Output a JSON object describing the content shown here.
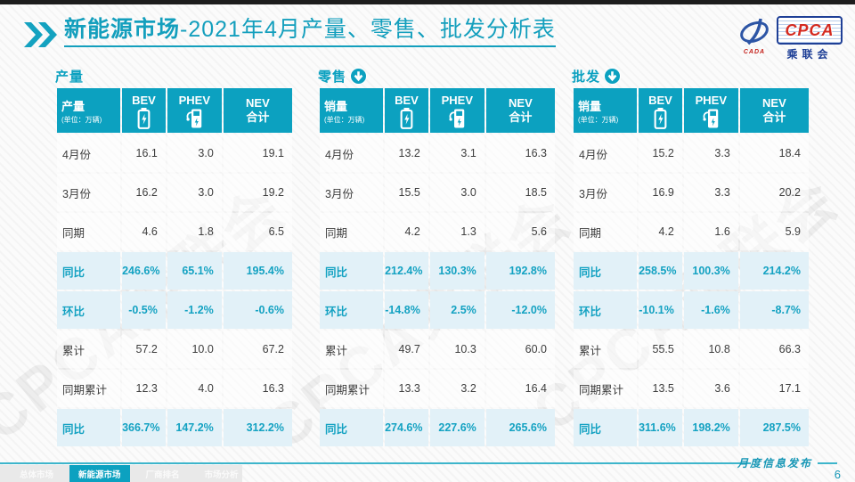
{
  "page": {
    "title_bold": "新能源市场",
    "title_rest": "-2021年4月产量、零售、批发分析表",
    "watermark": "CPCA乘联会",
    "footer_note": "月度信息发布",
    "page_number": "6"
  },
  "logo": {
    "brand": "CPCA",
    "sub_brand": "CADA",
    "org_name": "乘联会"
  },
  "table_labels": {
    "bev": "BEV",
    "phev": "PHEV",
    "nev_line1": "NEV",
    "nev_line2": "合计",
    "unit": "(单位：万辆)"
  },
  "colors": {
    "accent_teal": "#0CA1C0",
    "highlight_row_bg": "#E2F1F8",
    "logo_blue": "#1E3F96",
    "logo_red": "#D42A20"
  },
  "tables": [
    {
      "section": "产量",
      "has_down_arrow": false,
      "corner": "产量",
      "rows": [
        {
          "label": "4月份",
          "bev": "16.1",
          "phev": "3.0",
          "nev": "19.1",
          "highlight": false
        },
        {
          "label": "3月份",
          "bev": "16.2",
          "phev": "3.0",
          "nev": "19.2",
          "highlight": false
        },
        {
          "label": "同期",
          "bev": "4.6",
          "phev": "1.8",
          "nev": "6.5",
          "highlight": false
        },
        {
          "label": "同比",
          "bev": "246.6%",
          "phev": "65.1%",
          "nev": "195.4%",
          "highlight": true
        },
        {
          "label": "环比",
          "bev": "-0.5%",
          "phev": "-1.2%",
          "nev": "-0.6%",
          "highlight": true
        },
        {
          "label": "累计",
          "bev": "57.2",
          "phev": "10.0",
          "nev": "67.2",
          "highlight": false
        },
        {
          "label": "同期累计",
          "bev": "12.3",
          "phev": "4.0",
          "nev": "16.3",
          "highlight": false
        },
        {
          "label": "同比",
          "bev": "366.7%",
          "phev": "147.2%",
          "nev": "312.2%",
          "highlight": true
        }
      ]
    },
    {
      "section": "零售",
      "has_down_arrow": true,
      "corner": "销量",
      "rows": [
        {
          "label": "4月份",
          "bev": "13.2",
          "phev": "3.1",
          "nev": "16.3",
          "highlight": false
        },
        {
          "label": "3月份",
          "bev": "15.5",
          "phev": "3.0",
          "nev": "18.5",
          "highlight": false
        },
        {
          "label": "同期",
          "bev": "4.2",
          "phev": "1.3",
          "nev": "5.6",
          "highlight": false
        },
        {
          "label": "同比",
          "bev": "212.4%",
          "phev": "130.3%",
          "nev": "192.8%",
          "highlight": true
        },
        {
          "label": "环比",
          "bev": "-14.8%",
          "phev": "2.5%",
          "nev": "-12.0%",
          "highlight": true
        },
        {
          "label": "累计",
          "bev": "49.7",
          "phev": "10.3",
          "nev": "60.0",
          "highlight": false
        },
        {
          "label": "同期累计",
          "bev": "13.3",
          "phev": "3.2",
          "nev": "16.4",
          "highlight": false
        },
        {
          "label": "同比",
          "bev": "274.6%",
          "phev": "227.6%",
          "nev": "265.6%",
          "highlight": true
        }
      ]
    },
    {
      "section": "批发",
      "has_down_arrow": true,
      "corner": "销量",
      "rows": [
        {
          "label": "4月份",
          "bev": "15.2",
          "phev": "3.3",
          "nev": "18.4",
          "highlight": false
        },
        {
          "label": "3月份",
          "bev": "16.9",
          "phev": "3.3",
          "nev": "20.2",
          "highlight": false
        },
        {
          "label": "同期",
          "bev": "4.2",
          "phev": "1.6",
          "nev": "5.9",
          "highlight": false
        },
        {
          "label": "同比",
          "bev": "258.5%",
          "phev": "100.3%",
          "nev": "214.2%",
          "highlight": true
        },
        {
          "label": "环比",
          "bev": "-10.1%",
          "phev": "-1.6%",
          "nev": "-8.7%",
          "highlight": true
        },
        {
          "label": "累计",
          "bev": "55.5",
          "phev": "10.8",
          "nev": "66.3",
          "highlight": false
        },
        {
          "label": "同期累计",
          "bev": "13.5",
          "phev": "3.6",
          "nev": "17.1",
          "highlight": false
        },
        {
          "label": "同比",
          "bev": "311.6%",
          "phev": "198.2%",
          "nev": "287.5%",
          "highlight": true
        }
      ]
    }
  ],
  "footer_tabs": [
    {
      "label": "总体市场",
      "active": false
    },
    {
      "label": "新能源市场",
      "active": true
    },
    {
      "label": "厂商排名",
      "active": false
    },
    {
      "label": "市场分析",
      "active": false
    }
  ]
}
